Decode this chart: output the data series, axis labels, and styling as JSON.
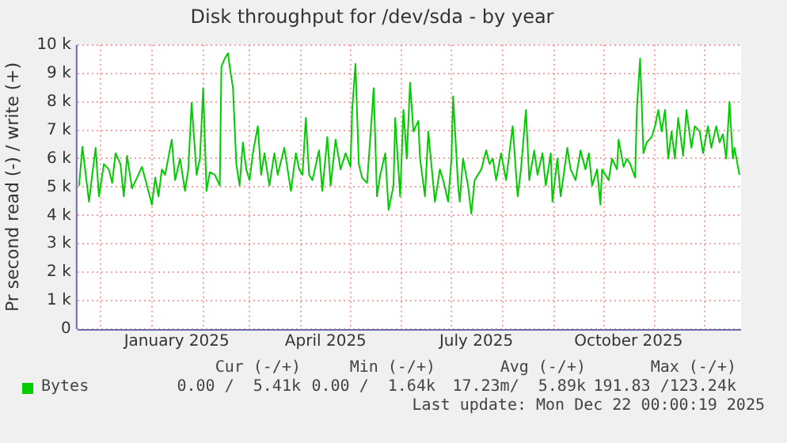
{
  "chart_data": {
    "type": "line",
    "title": "Disk throughput for /dev/sda - by year",
    "ylabel": "Pr second read (-) / write (+)",
    "xlim": [
      "2024-11-17",
      "2025-12-23"
    ],
    "xticks": [
      {
        "value": "2024-12-01",
        "label": null
      },
      {
        "value": "2025-01-01",
        "label": null
      },
      {
        "value": "2025-01-16",
        "label": "January 2025"
      },
      {
        "value": "2025-02-01",
        "label": null
      },
      {
        "value": "2025-03-01",
        "label": null
      },
      {
        "value": "2025-04-01",
        "label": null
      },
      {
        "value": "2025-04-16",
        "label": "April 2025"
      },
      {
        "value": "2025-05-01",
        "label": null
      },
      {
        "value": "2025-06-01",
        "label": null
      },
      {
        "value": "2025-07-01",
        "label": null
      },
      {
        "value": "2025-07-16",
        "label": "July 2025"
      },
      {
        "value": "2025-08-01",
        "label": null
      },
      {
        "value": "2025-09-01",
        "label": null
      },
      {
        "value": "2025-10-01",
        "label": null
      },
      {
        "value": "2025-10-16",
        "label": "October 2025"
      },
      {
        "value": "2025-11-01",
        "label": null
      },
      {
        "value": "2025-12-01",
        "label": null
      }
    ],
    "ylim": [
      0,
      10000
    ],
    "yticks": [
      0,
      {
        "value": 1000,
        "label": "1 k"
      },
      {
        "value": 2000,
        "label": "2 k"
      },
      {
        "value": 3000,
        "label": "3 k"
      },
      {
        "value": 4000,
        "label": "4 k"
      },
      {
        "value": 5000,
        "label": "5 k"
      },
      {
        "value": 6000,
        "label": "6 k"
      },
      {
        "value": 7000,
        "label": "7 k"
      },
      {
        "value": 8000,
        "label": "8 k"
      },
      {
        "value": 9000,
        "label": "9 k"
      },
      {
        "value": 10000,
        "label": "10 k"
      }
    ],
    "grid": true,
    "legend": "bottom left",
    "marker": "none",
    "line_style": "solid",
    "x": [
      "2024-11-18",
      "2024-11-20",
      "2024-11-24",
      "2024-11-26",
      "2024-11-28",
      "2024-11-30",
      "2024-12-03",
      "2024-12-06",
      "2024-12-08",
      "2024-12-10",
      "2024-12-13",
      "2024-12-15",
      "2024-12-17",
      "2024-12-20",
      "2024-12-23",
      "2024-12-26",
      "2024-12-29",
      "2025-01-01",
      "2025-01-03",
      "2025-01-05",
      "2025-01-07",
      "2025-01-09",
      "2025-01-13",
      "2025-01-15",
      "2025-01-18",
      "2025-01-21",
      "2025-01-23",
      "2025-01-25",
      "2025-01-27",
      "2025-01-28",
      "2025-01-30",
      "2025-02-01",
      "2025-02-03",
      "2025-02-05",
      "2025-02-08",
      "2025-02-11",
      "2025-02-12",
      "2025-02-14",
      "2025-02-16",
      "2025-02-17",
      "2025-02-19",
      "2025-02-21",
      "2025-02-23",
      "2025-02-25",
      "2025-02-27",
      "2025-03-01",
      "2025-03-03",
      "2025-03-06",
      "2025-03-08",
      "2025-03-10",
      "2025-03-13",
      "2025-03-16",
      "2025-03-18",
      "2025-03-22",
      "2025-03-24",
      "2025-03-26",
      "2025-03-29",
      "2025-03-31",
      "2025-04-02",
      "2025-04-04",
      "2025-04-06",
      "2025-04-08",
      "2025-04-12",
      "2025-04-14",
      "2025-04-17",
      "2025-04-19",
      "2025-04-22",
      "2025-04-25",
      "2025-04-28",
      "2025-05-01",
      "2025-05-02",
      "2025-05-04",
      "2025-05-06",
      "2025-05-08",
      "2025-05-11",
      "2025-05-13",
      "2025-05-15",
      "2025-05-17",
      "2025-05-19",
      "2025-05-22",
      "2025-05-24",
      "2025-05-27",
      "2025-05-28",
      "2025-05-31",
      "2025-06-02",
      "2025-06-04",
      "2025-06-06",
      "2025-06-08",
      "2025-06-11",
      "2025-06-12",
      "2025-06-15",
      "2025-06-17",
      "2025-06-21",
      "2025-06-24",
      "2025-06-26",
      "2025-06-29",
      "2025-07-01",
      "2025-07-02",
      "2025-07-05",
      "2025-07-06",
      "2025-07-08",
      "2025-07-11",
      "2025-07-13",
      "2025-07-15",
      "2025-07-19",
      "2025-07-22",
      "2025-07-24",
      "2025-07-26",
      "2025-07-28",
      "2025-07-31",
      "2025-08-03",
      "2025-08-05",
      "2025-08-07",
      "2025-08-10",
      "2025-08-12",
      "2025-08-15",
      "2025-08-17",
      "2025-08-20",
      "2025-08-22",
      "2025-08-25",
      "2025-08-27",
      "2025-08-30",
      "2025-08-31",
      "2025-09-03",
      "2025-09-05",
      "2025-09-09",
      "2025-09-11",
      "2025-09-14",
      "2025-09-17",
      "2025-09-20",
      "2025-09-22",
      "2025-09-24",
      "2025-09-27",
      "2025-09-29",
      "2025-09-30",
      "2025-10-04",
      "2025-10-06",
      "2025-10-09",
      "2025-10-10",
      "2025-10-13",
      "2025-10-15",
      "2025-10-17",
      "2025-10-20",
      "2025-10-21",
      "2025-10-23",
      "2025-10-25",
      "2025-10-27",
      "2025-10-30",
      "2025-11-01",
      "2025-11-03",
      "2025-11-05",
      "2025-11-07",
      "2025-11-09",
      "2025-11-11",
      "2025-11-13",
      "2025-11-15",
      "2025-11-18",
      "2025-11-20",
      "2025-11-23",
      "2025-11-25",
      "2025-11-28",
      "2025-11-30",
      "2025-12-03",
      "2025-12-05",
      "2025-12-08",
      "2025-12-10",
      "2025-12-12",
      "2025-12-14",
      "2025-12-16",
      "2025-12-18",
      "2025-12-19",
      "2025-12-22"
    ],
    "series": [
      {
        "name": "Bytes",
        "color": "#00cc00",
        "values": [
          5050,
          6420,
          4480,
          5470,
          6380,
          4670,
          5810,
          5620,
          5140,
          6190,
          5810,
          4670,
          6100,
          4950,
          5330,
          5710,
          5050,
          4380,
          5330,
          4670,
          5620,
          5430,
          6670,
          5240,
          6000,
          4860,
          5620,
          7960,
          6290,
          5430,
          6000,
          8480,
          4860,
          5520,
          5430,
          5050,
          9240,
          9520,
          9710,
          9240,
          8480,
          5810,
          5050,
          6570,
          5620,
          5240,
          6190,
          7140,
          5430,
          6190,
          5050,
          6190,
          5430,
          6380,
          5620,
          4860,
          6190,
          5620,
          5430,
          7430,
          5430,
          5240,
          6290,
          4860,
          6760,
          5050,
          6670,
          5620,
          6190,
          5710,
          7710,
          9330,
          5810,
          5330,
          5140,
          6760,
          8480,
          4670,
          5430,
          6190,
          4190,
          5050,
          7430,
          4670,
          7710,
          6000,
          8670,
          6950,
          7330,
          6000,
          4670,
          6950,
          4480,
          5620,
          5240,
          4480,
          6000,
          8190,
          5050,
          4480,
          6000,
          5050,
          4060,
          5240,
          5620,
          6290,
          5810,
          6000,
          5240,
          6190,
          5240,
          6190,
          7140,
          4670,
          5620,
          7710,
          5240,
          6290,
          5430,
          6190,
          5050,
          6190,
          4480,
          6000,
          4670,
          6380,
          5620,
          5240,
          6290,
          5620,
          6190,
          5050,
          5620,
          4380,
          5620,
          5240,
          6000,
          5620,
          6670,
          5710,
          6000,
          5810,
          5330,
          7710,
          9520,
          6190,
          6570,
          6760,
          7140,
          7710,
          6950,
          7710,
          6000,
          6950,
          6000,
          7430,
          6100,
          7710,
          6380,
          7140,
          6950,
          6190,
          7140,
          6380,
          7140,
          6570,
          6860,
          6000,
          8000,
          6000,
          6380,
          5430
        ]
      }
    ],
    "annotations": [
      "Cur (-/+)",
      "Min (-/+)",
      "Avg (-/+)",
      "Max (-/+)",
      "0.00 /  5.41k",
      "0.00 /  1.64k",
      "17.23m/  5.89k",
      "191.83 /123.24k",
      "Last update: Mon Dec 22 00:00:19 2025"
    ]
  }
}
